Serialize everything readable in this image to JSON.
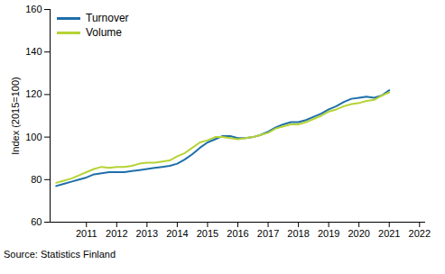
{
  "chart_data": {
    "type": "line",
    "y_label": "Index (2015=100)",
    "caption": "Source: Statistics Finland",
    "x": [
      2010,
      2010.25,
      2010.5,
      2010.75,
      2011,
      2011.25,
      2011.5,
      2011.75,
      2012,
      2012.25,
      2012.5,
      2012.75,
      2013,
      2013.25,
      2013.5,
      2013.75,
      2014,
      2014.25,
      2014.5,
      2014.75,
      2015,
      2015.25,
      2015.5,
      2015.75,
      2016,
      2016.25,
      2016.5,
      2016.75,
      2017,
      2017.25,
      2017.5,
      2017.75,
      2018,
      2018.25,
      2018.5,
      2018.75,
      2019,
      2019.25,
      2019.5,
      2019.75,
      2020,
      2020.25,
      2020.5,
      2020.75,
      2021
    ],
    "series": [
      {
        "name": "Turnover",
        "color": "#1f6fa8",
        "values": [
          77,
          78,
          79,
          80,
          81,
          82.5,
          83,
          83.5,
          83.5,
          83.5,
          84,
          84.5,
          85,
          85.5,
          86,
          86.5,
          87.5,
          89.5,
          92,
          95,
          97.5,
          99,
          100.5,
          100.5,
          99.5,
          99.5,
          100,
          101,
          102.5,
          104.5,
          106,
          107,
          107,
          108,
          109.5,
          111,
          113,
          114.5,
          116.5,
          118,
          118.5,
          119,
          118.5,
          119.5,
          122
        ]
      },
      {
        "name": "Volume",
        "color": "#b5d334",
        "values": [
          78.5,
          79.5,
          80.5,
          82,
          83.5,
          85,
          86,
          85.5,
          86,
          86,
          86.5,
          87.5,
          88,
          88,
          88.5,
          89,
          91,
          92.5,
          95,
          97.5,
          98.5,
          100,
          100,
          99.5,
          99,
          99.5,
          100,
          101,
          102,
          104,
          105,
          106,
          106,
          107,
          108.5,
          110,
          112,
          113,
          114.5,
          115.5,
          116,
          117,
          117.5,
          119.5,
          121
        ]
      }
    ],
    "xlim": [
      2009.8,
      2022.2
    ],
    "xticks": [
      2011,
      2012,
      2013,
      2014,
      2015,
      2016,
      2017,
      2018,
      2019,
      2020,
      2021,
      2022
    ],
    "ylim": [
      60,
      160
    ],
    "yticks": [
      60,
      80,
      100,
      120,
      140,
      160
    ],
    "grid": false,
    "legend": "top-left"
  }
}
